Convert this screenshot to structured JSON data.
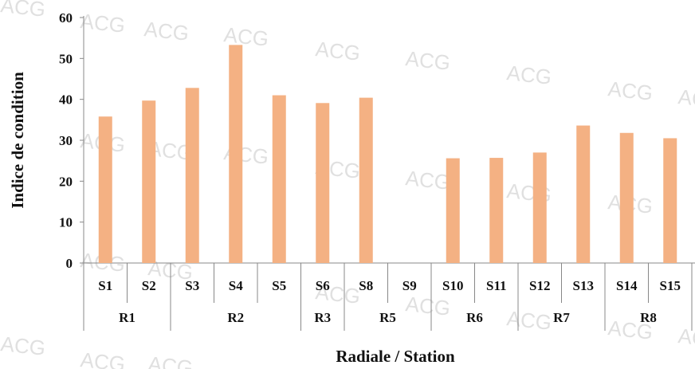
{
  "chart_data": {
    "type": "bar",
    "categories": [
      "S1",
      "S2",
      "S3",
      "S4",
      "S5",
      "S6",
      "S8",
      "S9",
      "S10",
      "S11",
      "S12",
      "S13",
      "S14",
      "S15"
    ],
    "values": [
      35.8,
      39.7,
      42.8,
      53.3,
      41.0,
      39.1,
      40.4,
      null,
      25.6,
      25.7,
      27.0,
      33.6,
      31.8,
      30.5
    ],
    "groups": [
      {
        "label": "R1",
        "count": 2
      },
      {
        "label": "R2",
        "count": 3
      },
      {
        "label": "R3",
        "count": 1
      },
      {
        "label": "R5",
        "count": 2
      },
      {
        "label": "R6",
        "count": 2
      },
      {
        "label": "R7",
        "count": 2
      },
      {
        "label": "R8",
        "count": 2
      }
    ],
    "ylabel": "Indice de condition",
    "xlabel": "Radiale / Station",
    "ylim": [
      0,
      60
    ],
    "yticks": [
      0,
      10,
      20,
      30,
      40,
      50,
      60
    ],
    "bar_color": "#f4b183",
    "grid": false,
    "watermark": "ACG"
  }
}
